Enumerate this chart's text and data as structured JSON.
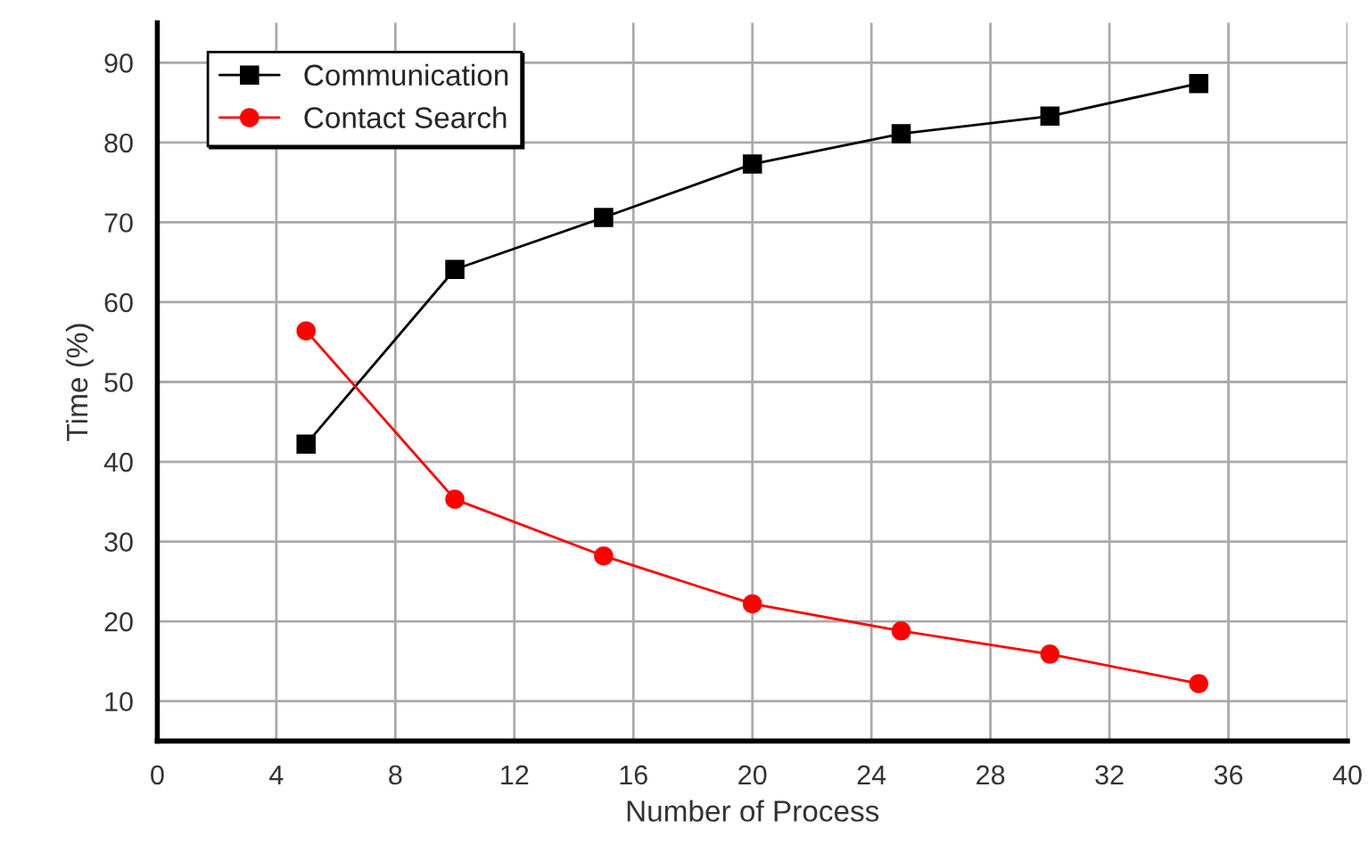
{
  "chart_data": {
    "type": "line",
    "xlabel": "Number of Process",
    "ylabel": "Time (%)",
    "x": [
      5,
      10,
      15,
      20,
      25,
      30,
      35
    ],
    "series": [
      {
        "name": "Communication",
        "color": "#000000",
        "marker": "square",
        "values": [
          42.2,
          64.1,
          70.6,
          77.3,
          81.1,
          83.3,
          87.4
        ]
      },
      {
        "name": "Contact Search",
        "color": "#ff0000",
        "marker": "circle",
        "values": [
          56.4,
          35.3,
          28.2,
          22.2,
          18.8,
          15.9,
          12.2
        ]
      }
    ],
    "xlim": [
      0,
      40
    ],
    "xticks": [
      0,
      4,
      8,
      12,
      16,
      20,
      24,
      28,
      32,
      36,
      40
    ],
    "ylim": [
      5,
      95
    ],
    "yticks": [
      10,
      20,
      30,
      40,
      50,
      60,
      70,
      80,
      90
    ],
    "grid": true,
    "legend": "top left",
    "line_style": "solid"
  }
}
